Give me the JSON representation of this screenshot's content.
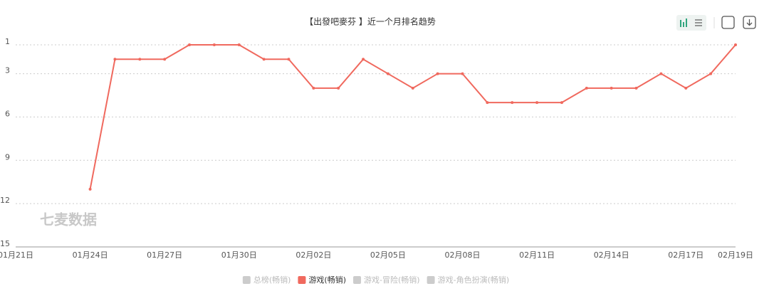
{
  "chart_data": {
    "type": "line",
    "title": "【出發吧麥芬 】近一个月排名趋势",
    "watermark": "七麦数据",
    "categories": [
      "01月21日",
      null,
      null,
      "01月24日",
      null,
      null,
      "01月27日",
      null,
      null,
      "01月30日",
      null,
      null,
      "02月02日",
      null,
      null,
      "02月05日",
      null,
      null,
      "02月08日",
      null,
      null,
      "02月11日",
      null,
      null,
      "02月14日",
      null,
      null,
      "02月17日",
      null,
      "02月19日"
    ],
    "series": [
      {
        "name": "总榜(畅销)",
        "color": "#cccccc",
        "hidden": true
      },
      {
        "name": "游戏(畅销)",
        "color": "#f0695e",
        "values": [
          null,
          null,
          null,
          11,
          2,
          2,
          2,
          1,
          1,
          1,
          2,
          2,
          4,
          4,
          2,
          3,
          4,
          3,
          3,
          5,
          5,
          5,
          5,
          4,
          4,
          4,
          3,
          4,
          3,
          1
        ]
      },
      {
        "name": "游戏-冒险(畅销)",
        "color": "#cccccc",
        "hidden": true
      },
      {
        "name": "游戏-角色扮演(畅销)",
        "color": "#cccccc",
        "hidden": true
      }
    ],
    "ylim": [
      1,
      15
    ],
    "yticks": [
      1,
      3,
      6,
      9,
      12,
      15
    ],
    "y_inverted": true,
    "grid": true
  }
}
